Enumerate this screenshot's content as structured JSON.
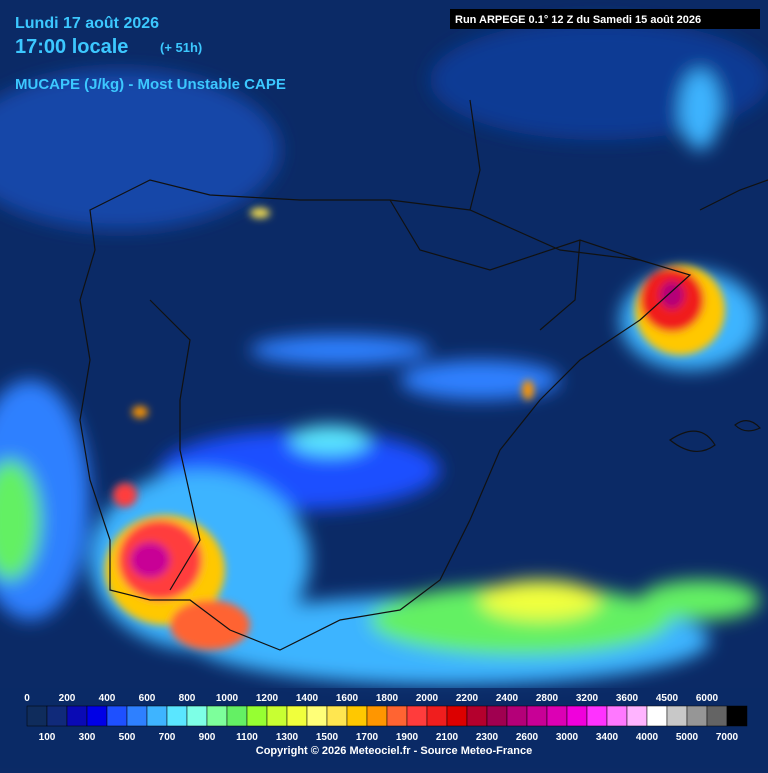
{
  "header": {
    "date": "Lundi 17 août 2026",
    "time": "17:00 locale",
    "lead": "(+ 51h)",
    "parameter": "MUCAPE (J/kg) - Most Unstable CAPE",
    "run": "Run ARPEGE 0.1° 12 Z du Samedi 15 août 2026"
  },
  "legend": {
    "labels_top": [
      0,
      200,
      400,
      600,
      800,
      1000,
      1200,
      1400,
      1600,
      1800,
      2000,
      2200,
      2400,
      2800,
      3200,
      3600,
      4500,
      6000
    ],
    "labels_bottom": [
      100,
      300,
      500,
      700,
      900,
      1100,
      1300,
      1500,
      1700,
      1900,
      2100,
      2300,
      2600,
      3000,
      3400,
      4000,
      5000,
      7000
    ],
    "colors": [
      "#0f2c5c",
      "#102a7a",
      "#0a0ab4",
      "#0000e6",
      "#1e50ff",
      "#2e80ff",
      "#3eb4ff",
      "#5ae6ff",
      "#7dffe6",
      "#7dff9b",
      "#64f064",
      "#96ff32",
      "#c8ff32",
      "#f0ff3c",
      "#ffff78",
      "#ffe650",
      "#ffc800",
      "#ff9600",
      "#ff6432",
      "#ff3c3c",
      "#f01e1e",
      "#dc0000",
      "#b4002d",
      "#a00050",
      "#b40078",
      "#c80096",
      "#dc00b4",
      "#f000dc",
      "#ff32ff",
      "#ff78ff",
      "#ffb4ff",
      "#ffffff",
      "#c8c8c8",
      "#969696",
      "#646464",
      "#000000"
    ]
  },
  "footer": {
    "copyright": "Copyright © 2026 Meteociel.fr - Source Meteo-France"
  }
}
